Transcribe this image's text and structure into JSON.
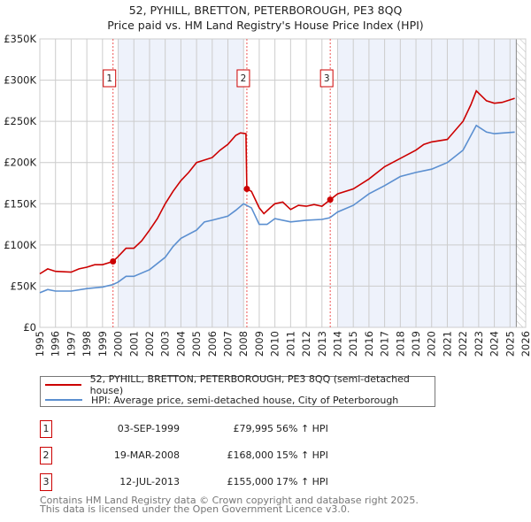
{
  "title_line1": "52, PYHILL, BRETTON, PETERBOROUGH, PE3 8QQ",
  "title_line2": "Price paid vs. HM Land Registry's House Price Index (HPI)",
  "colors": {
    "property": "#cc0000",
    "hpi": "#5b8fd0",
    "shade": "#eef2fb",
    "grid": "#cccccc"
  },
  "chart_data": {
    "type": "line",
    "title": "52, PYHILL, BRETTON, PETERBOROUGH, PE3 8QQ — Price paid vs. HM Land Registry's House Price Index (HPI)",
    "xlim": [
      1995,
      2026
    ],
    "ylim": [
      0,
      350000
    ],
    "y_ticks": [
      0,
      50000,
      100000,
      150000,
      200000,
      250000,
      300000,
      350000
    ],
    "y_tick_labels": [
      "£0",
      "£50K",
      "£100K",
      "£150K",
      "£200K",
      "£250K",
      "£300K",
      "£350K"
    ],
    "x_ticks": [
      1995,
      1996,
      1997,
      1998,
      1999,
      2000,
      2001,
      2002,
      2003,
      2004,
      2005,
      2006,
      2007,
      2008,
      2009,
      2010,
      2011,
      2012,
      2013,
      2014,
      2015,
      2016,
      2017,
      2018,
      2019,
      2020,
      2021,
      2022,
      2023,
      2024,
      2025,
      2026
    ],
    "grid": true,
    "shaded_ranges": [
      [
        2000,
        2008
      ],
      [
        2014,
        2025.4
      ]
    ],
    "hatched_from": 2025.4,
    "series": [
      {
        "name": "52, PYHILL, BRETTON, PETERBOROUGH, PE3 8QQ (semi-detached house)",
        "x": [
          1995,
          1995.5,
          1996,
          1997,
          1997.5,
          1998,
          1998.5,
          1999,
          1999.67,
          2000,
          2000.5,
          2001,
          2001.5,
          2002,
          2002.5,
          2003,
          2003.5,
          2004,
          2004.5,
          2005,
          2005.5,
          2006,
          2006.5,
          2007,
          2007.5,
          2007.8,
          2008.15,
          2008.21,
          2008.5,
          2009,
          2009.3,
          2009.7,
          2010,
          2010.5,
          2011,
          2011.5,
          2012,
          2012.5,
          2013,
          2013.53,
          2014,
          2015,
          2016,
          2017,
          2018,
          2019,
          2019.5,
          2020,
          2021,
          2022,
          2022.5,
          2022.85,
          2023.5,
          2024,
          2024.5,
          2025.3
        ],
        "values": [
          65000,
          71000,
          68000,
          67000,
          71000,
          73000,
          76000,
          76000,
          80000,
          86000,
          96000,
          96000,
          105000,
          118000,
          132000,
          150000,
          165000,
          178000,
          188000,
          200000,
          203000,
          206000,
          215000,
          222000,
          233000,
          236000,
          235000,
          168000,
          165000,
          145000,
          138000,
          145000,
          150000,
          152000,
          143000,
          148000,
          147000,
          149000,
          147000,
          155000,
          162000,
          168000,
          180000,
          195000,
          205000,
          215000,
          222000,
          225000,
          228000,
          250000,
          270000,
          287000,
          275000,
          272000,
          273000,
          278000
        ]
      },
      {
        "name": "HPI: Average price, semi-detached house, City of Peterborough",
        "x": [
          1995,
          1995.5,
          1996,
          1997,
          1998,
          1999,
          1999.67,
          2000,
          2000.5,
          2001,
          2002,
          2003,
          2003.5,
          2004,
          2005,
          2005.5,
          2006,
          2007,
          2007.5,
          2008,
          2008.5,
          2009,
          2009.5,
          2010,
          2011,
          2012,
          2013,
          2013.5,
          2014,
          2015,
          2016,
          2017,
          2018,
          2019,
          2020,
          2021,
          2022,
          2022.85,
          2023.5,
          2024,
          2025.3
        ],
        "values": [
          42000,
          46000,
          44000,
          44000,
          47000,
          49000,
          52000,
          55000,
          62000,
          62000,
          70000,
          85000,
          98000,
          108000,
          118000,
          128000,
          130000,
          135000,
          142000,
          150000,
          145000,
          125000,
          125000,
          132000,
          128000,
          130000,
          131000,
          133000,
          140000,
          148000,
          162000,
          172000,
          183000,
          188000,
          192000,
          200000,
          215000,
          245000,
          237000,
          235000,
          237000
        ]
      }
    ],
    "sales": [
      {
        "label": "1",
        "x": 1999.67,
        "value": 79995
      },
      {
        "label": "2",
        "x": 2008.21,
        "value": 168000
      },
      {
        "label": "3",
        "x": 2013.53,
        "value": 155000
      }
    ]
  },
  "legend": {
    "property": "52, PYHILL, BRETTON, PETERBOROUGH, PE3 8QQ (semi-detached house)",
    "hpi": "HPI: Average price, semi-detached house, City of Peterborough"
  },
  "transactions": [
    {
      "num": "1",
      "date": "03-SEP-1999",
      "price": "£79,995",
      "hpi": "56% ↑ HPI"
    },
    {
      "num": "2",
      "date": "19-MAR-2008",
      "price": "£168,000",
      "hpi": "15% ↑ HPI"
    },
    {
      "num": "3",
      "date": "12-JUL-2013",
      "price": "£155,000",
      "hpi": "17% ↑ HPI"
    }
  ],
  "footer_line1": "Contains HM Land Registry data © Crown copyright and database right 2025.",
  "footer_line2": "This data is licensed under the Open Government Licence v3.0."
}
